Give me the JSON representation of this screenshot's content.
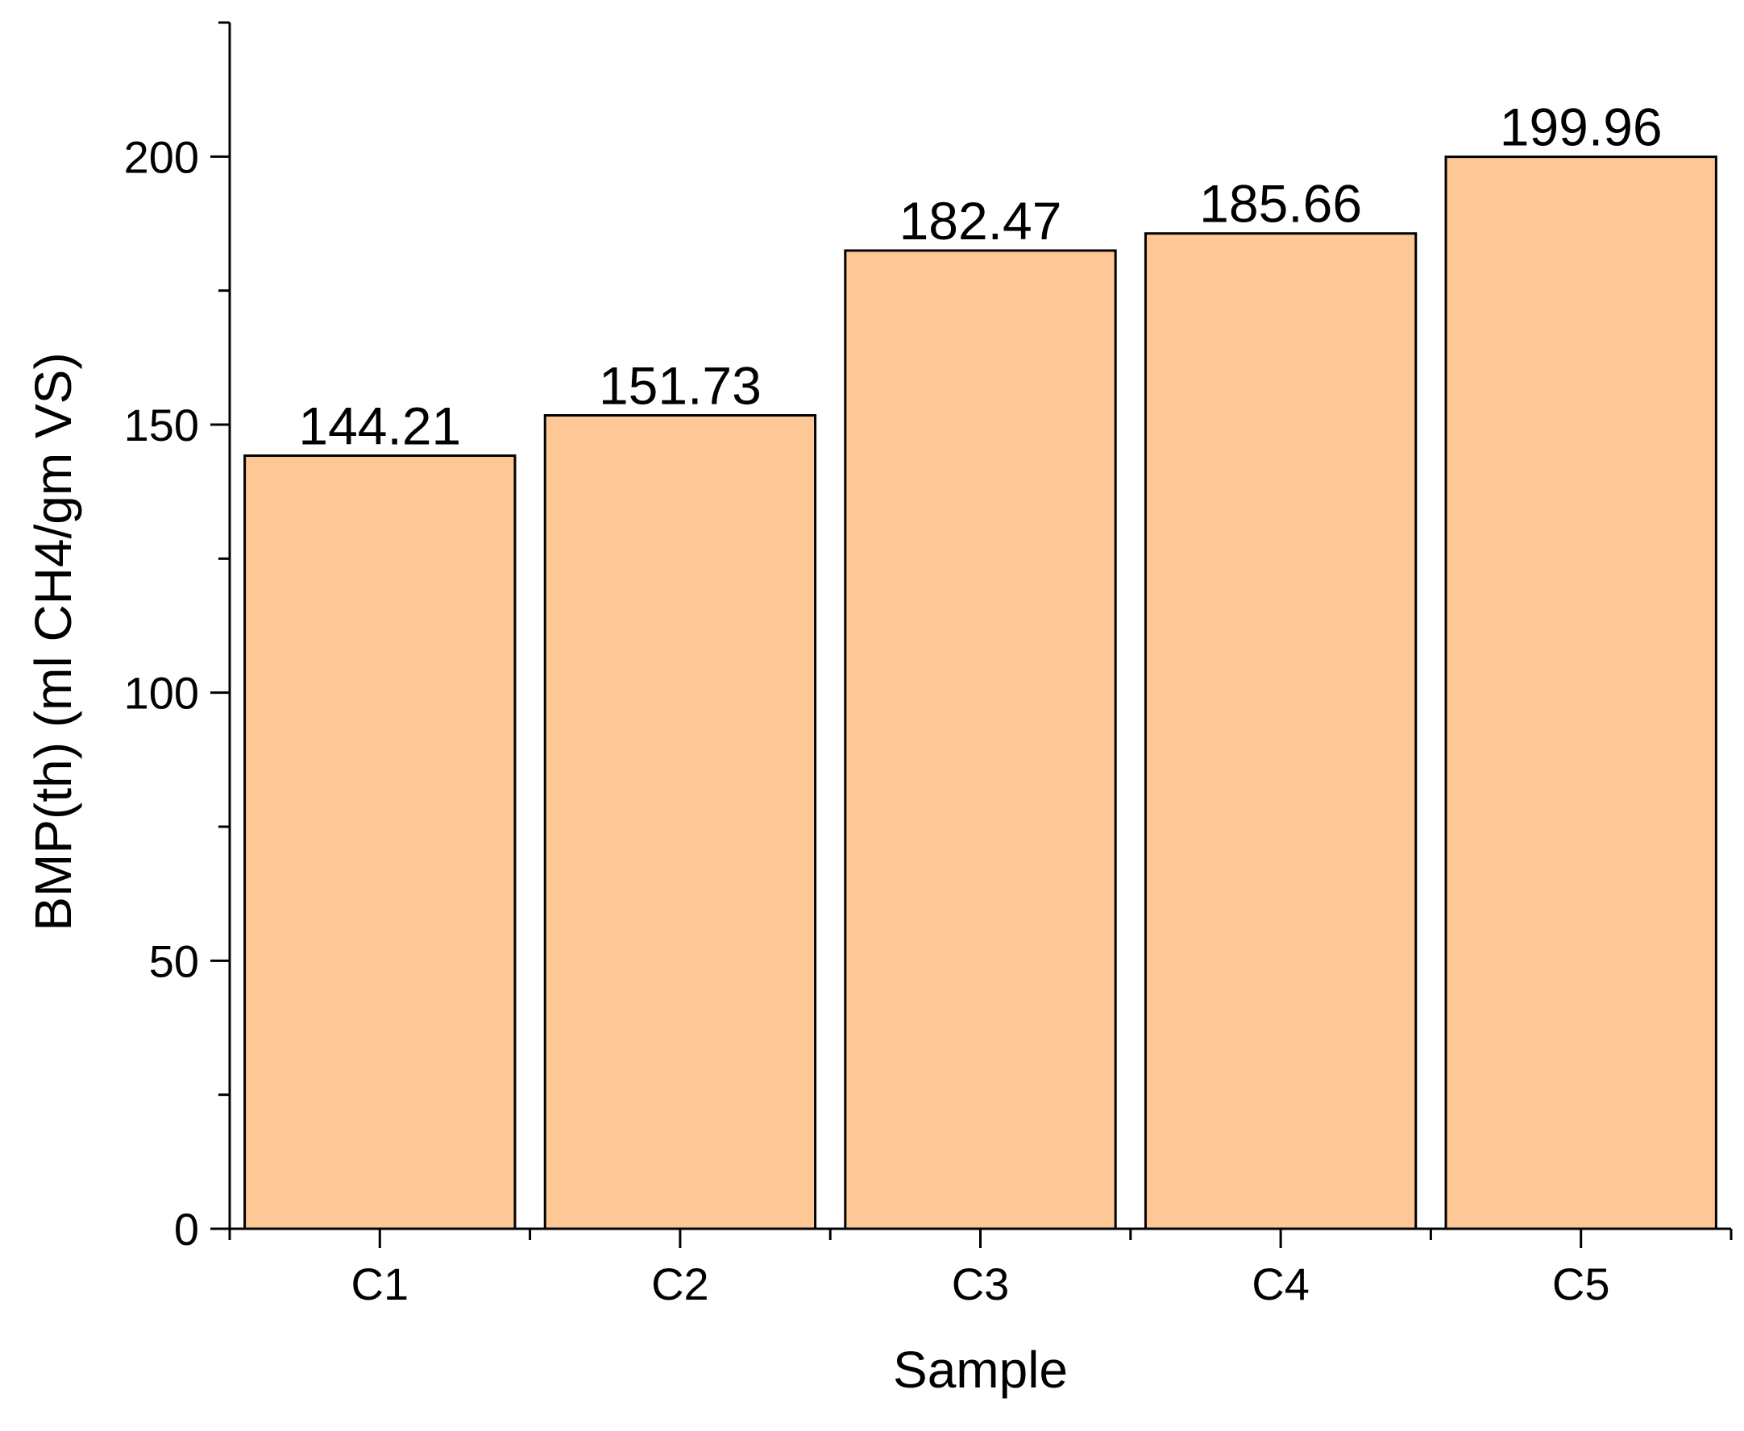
{
  "chart_data": {
    "type": "bar",
    "title": "",
    "xlabel": "Sample",
    "ylabel": "BMP(th) (ml CH4/gm VS)",
    "categories": [
      "C1",
      "C2",
      "C3",
      "C4",
      "C5"
    ],
    "values": [
      144.21,
      151.73,
      182.47,
      185.66,
      199.96
    ],
    "data_labels": [
      "144.21",
      "151.73",
      "182.47",
      "185.66",
      "199.96"
    ],
    "ylim": [
      0,
      225
    ],
    "yticks": [
      0,
      50,
      100,
      150,
      200
    ],
    "yticks_minor_step": 25,
    "grid": false,
    "legend": "none",
    "bar_color": "#FDC896",
    "bar_edge_color": "#000000"
  }
}
